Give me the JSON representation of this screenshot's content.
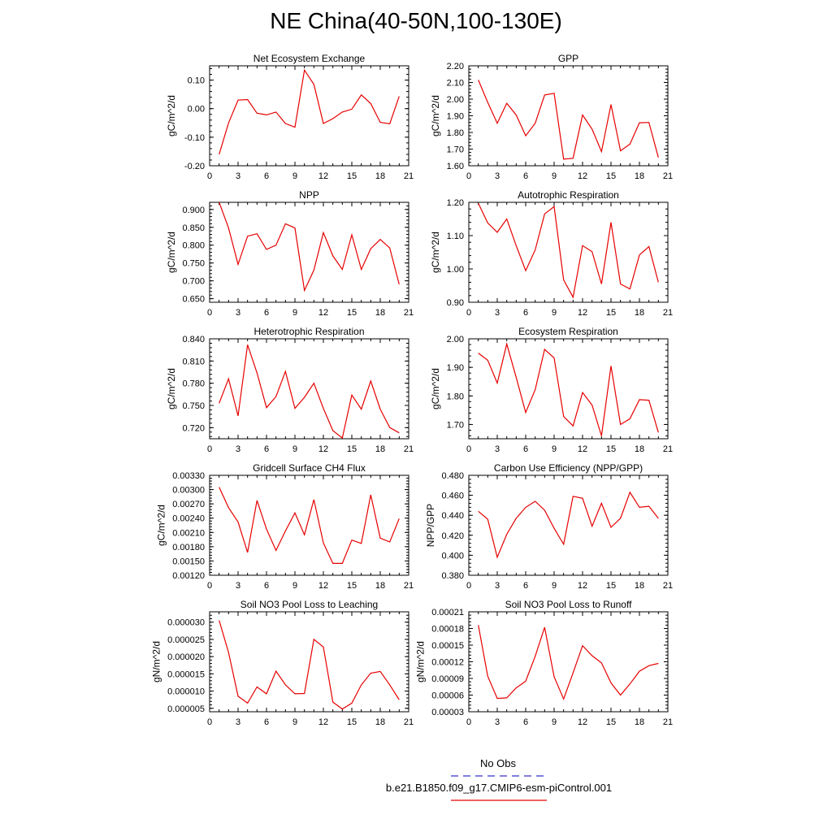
{
  "title": "NE China(40-50N,100-130E)",
  "legend": [
    {
      "label": "No Obs",
      "color": "#3333cc",
      "style": "dashed"
    },
    {
      "label": "b.e21.B1850.f09_g17.CMIP6-esm-piControl.001",
      "color": "#e60000",
      "style": "solid"
    }
  ],
  "chart_data": [
    {
      "type": "line",
      "title": "Net Ecosystem Exchange",
      "ylabel": "gC/m^2/d",
      "xlim": [
        0,
        21
      ],
      "xticks": [
        0,
        3,
        6,
        9,
        12,
        15,
        18,
        21
      ],
      "ylim": [
        -0.2,
        0.15
      ],
      "yticks": [
        -0.2,
        -0.1,
        0.0,
        0.1
      ],
      "ytick_labels": [
        "-0.20",
        "-0.10",
        "0.00",
        "0.10"
      ],
      "series": [
        {
          "color": "#e60000",
          "x": [
            1,
            2,
            3,
            4,
            5,
            6,
            7,
            8,
            9,
            10,
            11,
            12,
            13,
            14,
            15,
            16,
            17,
            18,
            19,
            20
          ],
          "y": [
            -0.16,
            -0.05,
            0.03,
            0.032,
            -0.016,
            -0.022,
            -0.012,
            -0.052,
            -0.065,
            0.135,
            0.085,
            -0.052,
            -0.035,
            -0.012,
            -0.002,
            0.048,
            0.018,
            -0.048,
            -0.053,
            0.043
          ]
        }
      ]
    },
    {
      "type": "line",
      "title": "GPP",
      "ylabel": "gC/m^2/d",
      "xlim": [
        0,
        21
      ],
      "xticks": [
        0,
        3,
        6,
        9,
        12,
        15,
        18,
        21
      ],
      "ylim": [
        1.6,
        2.2
      ],
      "yticks": [
        1.6,
        1.7,
        1.8,
        1.9,
        2.0,
        2.1,
        2.2
      ],
      "ytick_labels": [
        "1.60",
        "1.70",
        "1.80",
        "1.90",
        "2.00",
        "2.10",
        "2.20"
      ],
      "series": [
        {
          "color": "#e60000",
          "x": [
            1,
            2,
            3,
            4,
            5,
            6,
            7,
            8,
            9,
            10,
            11,
            12,
            13,
            14,
            15,
            16,
            17,
            18,
            19,
            20
          ],
          "y": [
            2.115,
            1.98,
            1.855,
            1.975,
            1.905,
            1.78,
            1.855,
            2.025,
            2.035,
            1.64,
            1.645,
            1.905,
            1.82,
            1.685,
            1.968,
            1.69,
            1.73,
            1.858,
            1.86,
            1.65
          ]
        }
      ]
    },
    {
      "type": "line",
      "title": "NPP",
      "ylabel": "gC/m^2/d",
      "xlim": [
        0,
        21
      ],
      "xticks": [
        0,
        3,
        6,
        9,
        12,
        15,
        18,
        21
      ],
      "ylim": [
        0.64,
        0.92
      ],
      "yticks": [
        0.65,
        0.7,
        0.75,
        0.8,
        0.85,
        0.9
      ],
      "ytick_labels": [
        "0.650",
        "0.700",
        "0.750",
        "0.800",
        "0.850",
        "0.900"
      ],
      "series": [
        {
          "color": "#e60000",
          "x": [
            1,
            2,
            3,
            4,
            5,
            6,
            7,
            8,
            9,
            10,
            11,
            12,
            13,
            14,
            15,
            16,
            17,
            18,
            19,
            20
          ],
          "y": [
            0.92,
            0.848,
            0.746,
            0.825,
            0.832,
            0.788,
            0.8,
            0.86,
            0.848,
            0.673,
            0.73,
            0.835,
            0.77,
            0.732,
            0.829,
            0.732,
            0.79,
            0.816,
            0.792,
            0.69
          ]
        }
      ]
    },
    {
      "type": "line",
      "title": "Autotrophic Respiration",
      "ylabel": "gC/m^2/d",
      "xlim": [
        0,
        21
      ],
      "xticks": [
        0,
        3,
        6,
        9,
        12,
        15,
        18,
        21
      ],
      "ylim": [
        0.9,
        1.2
      ],
      "yticks": [
        0.9,
        1.0,
        1.1,
        1.2
      ],
      "ytick_labels": [
        "0.90",
        "1.00",
        "1.10",
        "1.20"
      ],
      "series": [
        {
          "color": "#e60000",
          "x": [
            1,
            2,
            3,
            4,
            5,
            6,
            7,
            8,
            9,
            10,
            11,
            12,
            13,
            14,
            15,
            16,
            17,
            18,
            19,
            20
          ],
          "y": [
            1.197,
            1.138,
            1.11,
            1.15,
            1.07,
            0.995,
            1.057,
            1.165,
            1.187,
            0.967,
            0.915,
            1.07,
            1.052,
            0.955,
            1.14,
            0.955,
            0.94,
            1.042,
            1.067,
            0.96
          ]
        }
      ]
    },
    {
      "type": "line",
      "title": "Heterotrophic Respiration",
      "ylabel": "gC/m^2/d",
      "xlim": [
        0,
        21
      ],
      "xticks": [
        0,
        3,
        6,
        9,
        12,
        15,
        18,
        21
      ],
      "ylim": [
        0.705,
        0.84
      ],
      "yticks": [
        0.72,
        0.75,
        0.78,
        0.81,
        0.84
      ],
      "ytick_labels": [
        "0.720",
        "0.750",
        "0.780",
        "0.810",
        "0.840"
      ],
      "series": [
        {
          "color": "#e60000",
          "x": [
            1,
            2,
            3,
            4,
            5,
            6,
            7,
            8,
            9,
            10,
            11,
            12,
            13,
            14,
            15,
            16,
            17,
            18,
            19,
            20
          ],
          "y": [
            0.753,
            0.786,
            0.736,
            0.832,
            0.794,
            0.747,
            0.762,
            0.796,
            0.746,
            0.761,
            0.78,
            0.746,
            0.716,
            0.706,
            0.764,
            0.745,
            0.783,
            0.745,
            0.72,
            0.713
          ]
        }
      ]
    },
    {
      "type": "line",
      "title": "Ecosystem Respiration",
      "ylabel": "gC/m^2/d",
      "xlim": [
        0,
        21
      ],
      "xticks": [
        0,
        3,
        6,
        9,
        12,
        15,
        18,
        21
      ],
      "ylim": [
        1.65,
        2.0
      ],
      "yticks": [
        1.7,
        1.8,
        1.9,
        2.0
      ],
      "ytick_labels": [
        "1.70",
        "1.80",
        "1.90",
        "2.00"
      ],
      "series": [
        {
          "color": "#e60000",
          "x": [
            1,
            2,
            3,
            4,
            5,
            6,
            7,
            8,
            9,
            10,
            11,
            12,
            13,
            14,
            15,
            16,
            17,
            18,
            19,
            20
          ],
          "y": [
            1.95,
            1.925,
            1.845,
            1.982,
            1.865,
            1.742,
            1.822,
            1.963,
            1.933,
            1.728,
            1.695,
            1.812,
            1.768,
            1.66,
            1.905,
            1.7,
            1.72,
            1.787,
            1.785,
            1.672
          ]
        }
      ]
    },
    {
      "type": "line",
      "title": "Gridcell Surface CH4 Flux",
      "ylabel": "gC/m^2/d",
      "xlim": [
        0,
        21
      ],
      "xticks": [
        0,
        3,
        6,
        9,
        12,
        15,
        18,
        21
      ],
      "ylim": [
        0.0012,
        0.0033
      ],
      "yticks": [
        0.0012,
        0.0015,
        0.0018,
        0.0021,
        0.0024,
        0.0027,
        0.003,
        0.0033
      ],
      "ytick_labels": [
        "0.00120",
        "0.00150",
        "0.00180",
        "0.00210",
        "0.00240",
        "0.00270",
        "0.00300",
        "0.00330"
      ],
      "series": [
        {
          "color": "#e60000",
          "x": [
            1,
            2,
            3,
            4,
            5,
            6,
            7,
            8,
            9,
            10,
            11,
            12,
            13,
            14,
            15,
            16,
            17,
            18,
            19,
            20
          ],
          "y": [
            0.00305,
            0.00262,
            0.00232,
            0.00168,
            0.00277,
            0.00217,
            0.00172,
            0.00213,
            0.00251,
            0.00205,
            0.00279,
            0.00188,
            0.00145,
            0.00145,
            0.00194,
            0.00187,
            0.00289,
            0.00198,
            0.0019,
            0.00239
          ]
        }
      ]
    },
    {
      "type": "line",
      "title": "Carbon Use Efficiency (NPP/GPP)",
      "ylabel": "NPP/GPP",
      "xlim": [
        0,
        21
      ],
      "xticks": [
        0,
        3,
        6,
        9,
        12,
        15,
        18,
        21
      ],
      "ylim": [
        0.38,
        0.48
      ],
      "yticks": [
        0.38,
        0.4,
        0.42,
        0.44,
        0.46,
        0.48
      ],
      "ytick_labels": [
        "0.380",
        "0.400",
        "0.420",
        "0.440",
        "0.460",
        "0.480"
      ],
      "series": [
        {
          "color": "#e60000",
          "x": [
            1,
            2,
            3,
            4,
            5,
            6,
            7,
            8,
            9,
            10,
            11,
            12,
            13,
            14,
            15,
            16,
            17,
            18,
            19,
            20
          ],
          "y": [
            0.444,
            0.436,
            0.398,
            0.421,
            0.437,
            0.448,
            0.454,
            0.445,
            0.427,
            0.411,
            0.459,
            0.457,
            0.429,
            0.452,
            0.428,
            0.437,
            0.463,
            0.448,
            0.449,
            0.437
          ]
        }
      ]
    },
    {
      "type": "line",
      "title": "Soil NO3 Pool Loss to Leaching",
      "ylabel": "gN/m^2/d",
      "xlim": [
        0,
        21
      ],
      "xticks": [
        0,
        3,
        6,
        9,
        12,
        15,
        18,
        21
      ],
      "ylim": [
        4e-06,
        3.3e-05
      ],
      "yticks": [
        5e-06,
        1e-05,
        1.5e-05,
        2e-05,
        2.5e-05,
        3e-05
      ],
      "ytick_labels": [
        "0.000005",
        "0.000010",
        "0.000015",
        "0.000020",
        "0.000025",
        "0.000030"
      ],
      "series": [
        {
          "color": "#e60000",
          "x": [
            1,
            2,
            3,
            4,
            5,
            6,
            7,
            8,
            9,
            10,
            11,
            12,
            13,
            14,
            15,
            16,
            17,
            18,
            19,
            20
          ],
          "y": [
            3.05e-05,
            2.12e-05,
            8.5e-06,
            6.5e-06,
            1.12e-05,
            9.2e-06,
            1.58e-05,
            1.18e-05,
            9.2e-06,
            9.3e-06,
            2.5e-05,
            2.28e-05,
            6.8e-06,
            4.8e-06,
            6.5e-06,
            1.18e-05,
            1.52e-05,
            1.57e-05,
            1.18e-05,
            7.5e-06
          ]
        }
      ]
    },
    {
      "type": "line",
      "title": "Soil NO3 Pool Loss to Runoff",
      "ylabel": "gN/m^2/d",
      "xlim": [
        0,
        21
      ],
      "xticks": [
        0,
        3,
        6,
        9,
        12,
        15,
        18,
        21
      ],
      "ylim": [
        3e-05,
        0.00021
      ],
      "yticks": [
        3e-05,
        6e-05,
        9e-05,
        0.00012,
        0.00015,
        0.00018,
        0.00021
      ],
      "ytick_labels": [
        "0.00003",
        "0.00006",
        "0.00009",
        "0.00012",
        "0.00015",
        "0.00018",
        "0.00021"
      ],
      "series": [
        {
          "color": "#e60000",
          "x": [
            1,
            2,
            3,
            4,
            5,
            6,
            7,
            8,
            9,
            10,
            11,
            12,
            13,
            14,
            15,
            16,
            17,
            18,
            19,
            20
          ],
          "y": [
            0.000186,
            9.4e-05,
            5.4e-05,
            5.5e-05,
            7.3e-05,
            8.5e-05,
            0.00013,
            0.000182,
            9.3e-05,
            5.3e-05,
            0.0001,
            0.000149,
            0.000131,
            0.000118,
            8.2e-05,
            6e-05,
            8e-05,
            0.000103,
            0.000113,
            0.000117
          ]
        }
      ]
    }
  ]
}
